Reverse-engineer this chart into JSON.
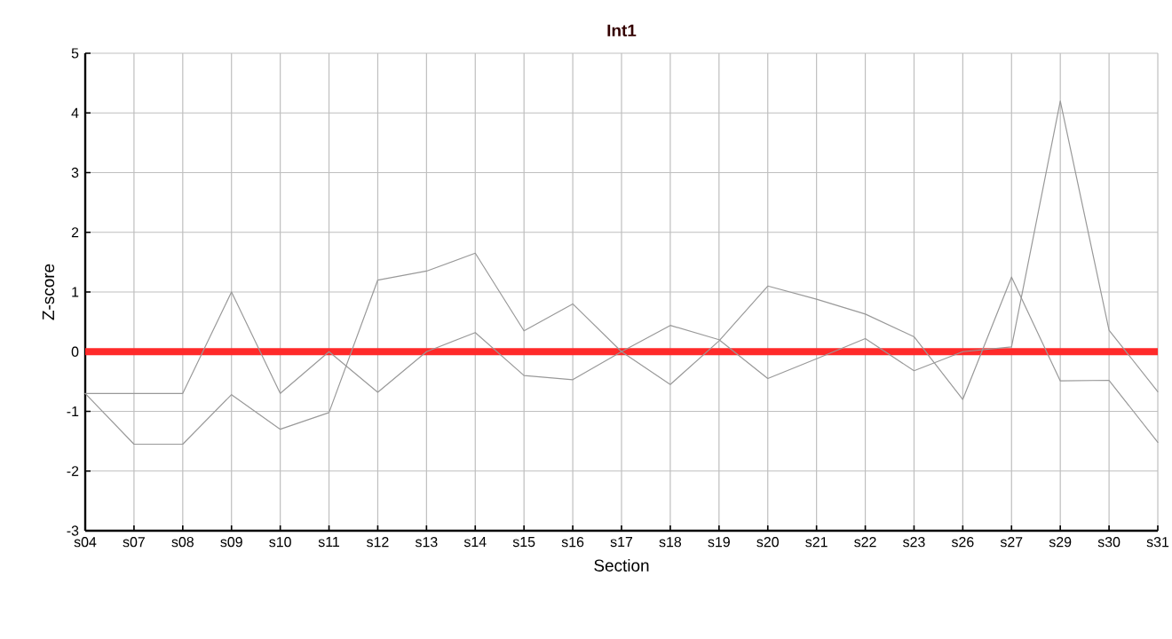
{
  "chart_data": {
    "type": "line",
    "title": "Int1",
    "xlabel": "Section",
    "ylabel": "Z-score",
    "categories": [
      "s04",
      "s07",
      "s08",
      "s09",
      "s10",
      "s11",
      "s12",
      "s13",
      "s14",
      "s15",
      "s16",
      "s17",
      "s18",
      "s19",
      "s20",
      "s21",
      "s22",
      "s23",
      "s26",
      "s27",
      "s29",
      "s30",
      "s31"
    ],
    "series": [
      {
        "color": "#999999",
        "values": [
          -0.7,
          -0.7,
          -0.7,
          1.0,
          -0.7,
          0.0,
          -0.68,
          0.0,
          0.32,
          -0.4,
          -0.47,
          0.0,
          0.44,
          0.2,
          -0.45,
          -0.12,
          0.22,
          -0.32,
          0.0,
          0.08,
          4.2,
          0.36,
          -0.67
        ]
      },
      {
        "color": "#999999",
        "values": [
          -0.7,
          -1.55,
          -1.55,
          -0.72,
          -1.3,
          -1.02,
          1.2,
          1.35,
          1.65,
          0.35,
          0.8,
          0.0,
          -0.55,
          0.18,
          1.1,
          0.88,
          0.63,
          0.25,
          -0.8,
          1.25,
          -0.49,
          -0.48,
          -1.52
        ]
      }
    ],
    "ylim": [
      -3,
      5
    ],
    "yticks": [
      -3,
      -2,
      -1,
      0,
      1,
      2,
      3,
      4,
      5
    ],
    "ref_lines": [
      {
        "axis": "y",
        "value": 0,
        "color": "#ff2a2a"
      }
    ],
    "grid": true,
    "marker": "none",
    "line_style": "solid"
  }
}
